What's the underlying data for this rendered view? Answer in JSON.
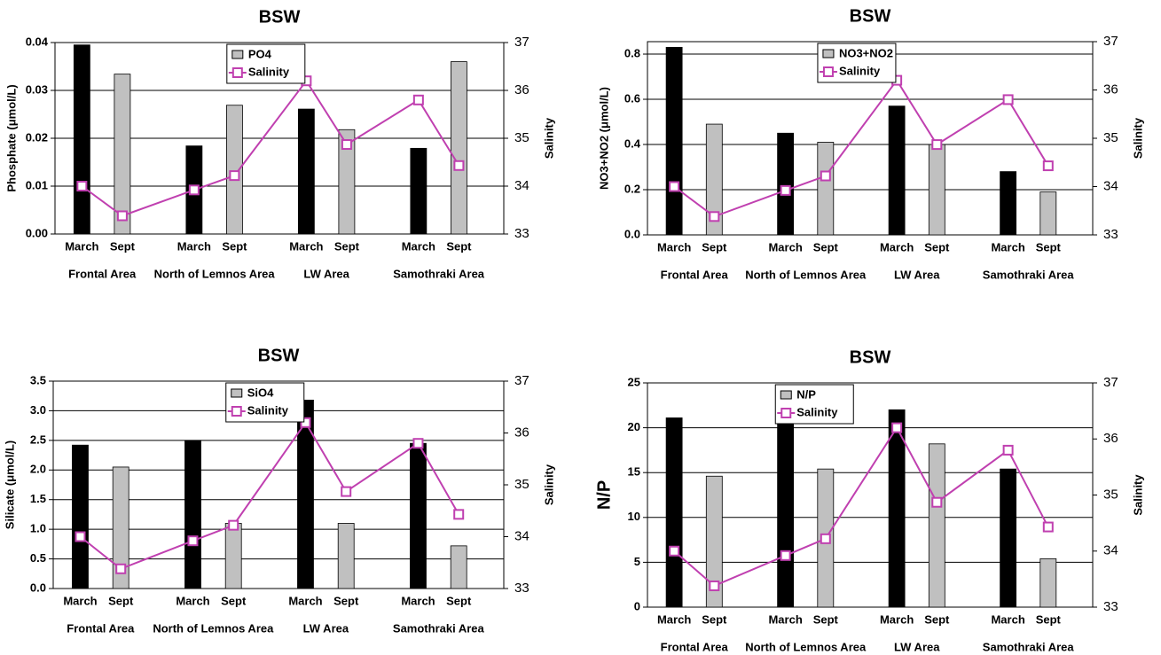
{
  "chart_data": [
    {
      "type": "bar",
      "title": "BSW",
      "ylabel": "Phosphate  (μmol/L)",
      "y2label": "Salinity",
      "categories": [
        "March",
        "Sept",
        "March",
        "Sept",
        "March",
        "Sept",
        "March",
        "Sept"
      ],
      "groups": [
        "Frontal Area",
        "North of Lemnos Area",
        "LW Area",
        "Samothraki  Area"
      ],
      "series": [
        {
          "name": "PO4",
          "color": "#c0c0c0",
          "colors": [
            "#000000",
            "#c0c0c0",
            "#000000",
            "#c0c0c0",
            "#000000",
            "#c0c0c0",
            "#000000",
            "#c0c0c0"
          ],
          "values": [
            0.0395,
            0.0334,
            0.0184,
            0.0269,
            0.0261,
            0.0218,
            0.0179,
            0.036
          ]
        },
        {
          "name": "Salinity",
          "color": "#c040b0",
          "axis": "y2",
          "values": [
            34.0,
            33.38,
            33.92,
            34.22,
            36.2,
            34.87,
            35.8,
            34.43
          ]
        }
      ],
      "ylim": [
        0,
        0.04
      ],
      "yticks": [
        {
          "value": 0,
          "label": "0.00"
        },
        0.01,
        0.02,
        0.03,
        0.04
      ],
      "y2lim": [
        33,
        37
      ],
      "y2ticks": [
        33,
        34,
        35,
        36,
        37
      ],
      "grid": true,
      "legend": "upper center"
    },
    {
      "type": "bar",
      "title": "BSW",
      "ylabel": "NO3+NO2  (μmol/L)",
      "y2label": "Salinity",
      "categories": [
        "March",
        "Sept",
        "March",
        "Sept",
        "March",
        "Sept",
        "March",
        "Sept"
      ],
      "groups": [
        "Frontal Area",
        "North of Lemnos Area",
        "LW Area",
        "Samothraki  Area"
      ],
      "series": [
        {
          "name": "NO3+NO2",
          "color": "#c0c0c0",
          "colors": [
            "#000000",
            "#c0c0c0",
            "#000000",
            "#c0c0c0",
            "#000000",
            "#c0c0c0",
            "#000000",
            "#c0c0c0"
          ],
          "values": [
            0.83,
            0.49,
            0.45,
            0.41,
            0.57,
            0.4,
            0.28,
            0.19
          ]
        },
        {
          "name": "Salinity",
          "color": "#c040b0",
          "axis": "y2",
          "values": [
            34.0,
            33.38,
            33.92,
            34.22,
            36.2,
            34.87,
            35.8,
            34.43
          ]
        }
      ],
      "ylim": [
        0,
        0.855
      ],
      "yticks": [
        {
          "value": 0,
          "label": "0.0"
        },
        0.2,
        0.4,
        0.6,
        0.8
      ],
      "y2lim": [
        33,
        37
      ],
      "y2ticks": [
        33,
        34,
        35,
        36,
        37
      ],
      "grid": true,
      "legend": "upper center"
    },
    {
      "type": "bar",
      "title": "BSW",
      "ylabel": "Silicate  (μmol/L)",
      "y2label": "Salinity",
      "categories": [
        "March",
        "Sept",
        "March",
        "Sept",
        "March",
        "Sept",
        "March",
        "Sept"
      ],
      "groups": [
        "Frontal Area",
        "North of Lemnos Area",
        "LW Area",
        "Samothraki  Area"
      ],
      "series": [
        {
          "name": "SiO4",
          "color": "#c0c0c0",
          "colors": [
            "#000000",
            "#c0c0c0",
            "#000000",
            "#c0c0c0",
            "#000000",
            "#c0c0c0",
            "#000000",
            "#c0c0c0"
          ],
          "values": [
            2.42,
            2.05,
            2.5,
            1.1,
            3.18,
            1.1,
            2.45,
            0.72
          ]
        },
        {
          "name": "Salinity",
          "color": "#c040b0",
          "axis": "y2",
          "values": [
            34.0,
            33.38,
            33.92,
            34.22,
            36.2,
            34.87,
            35.8,
            34.43
          ]
        }
      ],
      "ylim": [
        0,
        3.5
      ],
      "yticks": [
        {
          "value": 0,
          "label": "0.0"
        },
        0.5,
        {
          "value": 1,
          "label": "1.0"
        },
        1.5,
        {
          "value": 2,
          "label": "2.0"
        },
        2.5,
        {
          "value": 3,
          "label": "3.0"
        },
        3.5
      ],
      "y2lim": [
        33,
        37
      ],
      "y2ticks": [
        33,
        34,
        35,
        36,
        37
      ],
      "grid": true,
      "legend": "upper center"
    },
    {
      "type": "bar",
      "title": "BSW",
      "ylabel": "N/P",
      "y2label": "Salinity",
      "categories": [
        "March",
        "Sept",
        "March",
        "Sept",
        "March",
        "Sept",
        "March",
        "Sept"
      ],
      "groups": [
        "Frontal Area",
        "North of Lemnos Area",
        "LW Area",
        "Samothraki  Area"
      ],
      "series": [
        {
          "name": "N/P",
          "color": "#c0c0c0",
          "colors": [
            "#000000",
            "#c0c0c0",
            "#000000",
            "#c0c0c0",
            "#000000",
            "#c0c0c0",
            "#000000",
            "#c0c0c0"
          ],
          "values": [
            21.1,
            14.6,
            24.5,
            15.4,
            22.0,
            18.2,
            15.4,
            5.4
          ]
        },
        {
          "name": "Salinity",
          "color": "#c040b0",
          "axis": "y2",
          "values": [
            34.0,
            33.38,
            33.92,
            34.22,
            36.2,
            34.87,
            35.8,
            34.43
          ]
        }
      ],
      "ylim": [
        0,
        25
      ],
      "yticks": [
        0,
        5,
        10,
        15,
        20,
        25
      ],
      "y2lim": [
        33,
        37
      ],
      "y2ticks": [
        33,
        34,
        35,
        36,
        37
      ],
      "grid": true,
      "legend": "upper left"
    }
  ]
}
